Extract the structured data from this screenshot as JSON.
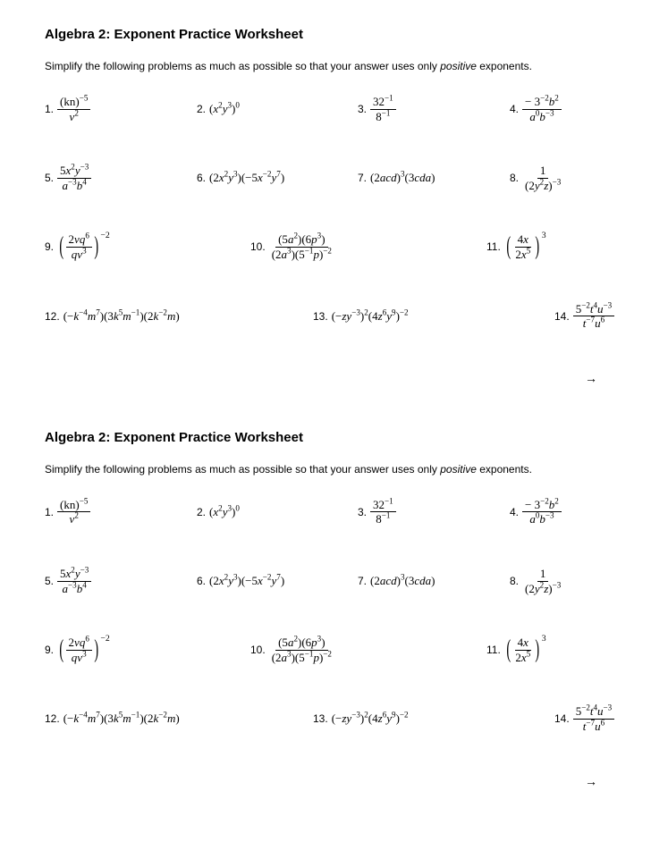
{
  "worksheet": {
    "title": "Algebra 2: Exponent Practice Worksheet",
    "instructions_pre": "Simplify the following problems as much as possible so that your answer uses only ",
    "instructions_italic": "positive",
    "instructions_post": " exponents.",
    "arrow": "→",
    "labels": {
      "p1": "1.",
      "p2": "2.",
      "p3": "3.",
      "p4": "4.",
      "p5": "5.",
      "p6": "6.",
      "p7": "7.",
      "p8": "8.",
      "p9": "9.",
      "p10": "10.",
      "p11": "11.",
      "p12": "12.",
      "p13": "13.",
      "p14": "14."
    },
    "m": {
      "p1_top": "(kn)",
      "p1_top_exp": "−5",
      "p1_bot": "v",
      "p1_bot_exp": "2",
      "p2_a": "(",
      "p2_b": "x",
      "p2_c": "2",
      "p2_d": "y",
      "p2_e": "3",
      "p2_f": ")",
      "p2_g": "0",
      "p3_top": "32",
      "p3_top_exp": "−1",
      "p3_bot": "8",
      "p3_bot_exp": "−1",
      "p4_top_a": "− 3",
      "p4_top_b": "−2",
      "p4_top_c": "b",
      "p4_top_d": "2",
      "p4_bot_a": "a",
      "p4_bot_b": "0",
      "p4_bot_c": "b",
      "p4_bot_d": "−3",
      "p5_top_a": "5",
      "p5_top_b": "x",
      "p5_top_c": "2",
      "p5_top_d": "y",
      "p5_top_e": "−3",
      "p5_bot_a": "a",
      "p5_bot_b": "−3",
      "p5_bot_c": "b",
      "p5_bot_d": "4",
      "p6_a": "(2",
      "p6_b": "x",
      "p6_c": "2",
      "p6_d": "y",
      "p6_e": "3",
      "p6_f": ")(−5",
      "p6_g": "x",
      "p6_h": "−2",
      "p6_i": "y",
      "p6_j": "7",
      "p6_k": ")",
      "p7_a": "(2",
      "p7_b": "acd",
      "p7_c": ")",
      "p7_d": "3",
      "p7_e": "(3",
      "p7_f": "cda",
      "p7_g": ")",
      "p8_top": "1",
      "p8_bot_a": "(2",
      "p8_bot_b": "y",
      "p8_bot_c": "2",
      "p8_bot_d": "z",
      "p8_bot_e": ")",
      "p8_bot_f": "−3",
      "p9_top_a": "2",
      "p9_top_b": "vq",
      "p9_top_c": "6",
      "p9_bot_a": "qv",
      "p9_bot_b": "3",
      "p9_exp": "−2",
      "p10_top_a": "(5",
      "p10_top_b": "a",
      "p10_top_c": "2",
      "p10_top_d": ")(6",
      "p10_top_e": "p",
      "p10_top_f": "3",
      "p10_top_g": ")",
      "p10_bot_a": "(2",
      "p10_bot_b": "a",
      "p10_bot_c": "3",
      "p10_bot_d": ")(5",
      "p10_bot_e": "−1",
      "p10_bot_f": "p",
      "p10_bot_g": ")",
      "p10_bot_h": "−2",
      "p11_top_a": "4",
      "p11_top_b": "x",
      "p11_bot_a": "2",
      "p11_bot_b": "x",
      "p11_bot_c": "5",
      "p11_exp": "3",
      "p12_a": "(−",
      "p12_b": "k",
      "p12_c": "−4",
      "p12_d": "m",
      "p12_e": "7",
      "p12_f": ")(3",
      "p12_g": "k",
      "p12_h": "5",
      "p12_i": "m",
      "p12_j": "−1",
      "p12_k": ")(2",
      "p12_l": "k",
      "p12_m": "−2",
      "p12_n": "m",
      "p12_o": ")",
      "p13_a": "(−",
      "p13_b": "zy",
      "p13_c": "−3",
      "p13_d": ")",
      "p13_e": "2",
      "p13_f": "(4",
      "p13_g": "z",
      "p13_h": "6",
      "p13_i": "y",
      "p13_j": "9",
      "p13_k": ")",
      "p13_l": "−2",
      "p14_top_a": "5",
      "p14_top_b": "−2",
      "p14_top_c": "t",
      "p14_top_d": "4",
      "p14_top_e": "u",
      "p14_top_f": "−3",
      "p14_bot_a": "t",
      "p14_bot_b": "−7",
      "p14_bot_c": "u",
      "p14_bot_d": "6"
    }
  }
}
